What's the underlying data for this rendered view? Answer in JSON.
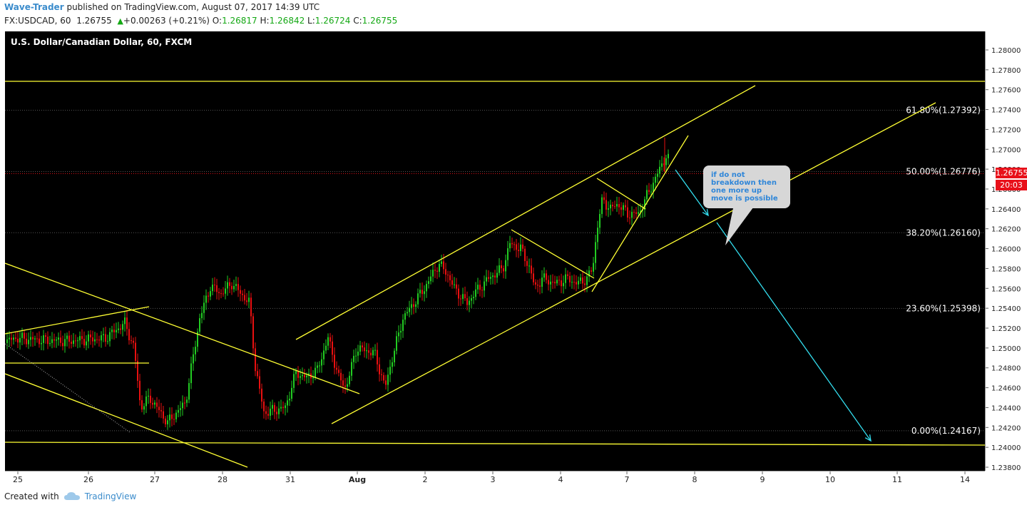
{
  "header": {
    "author": "Wave-Trader",
    "published": "published on TradingView.com, August 07, 2017 14:39 UTC",
    "symbol": "FX:USDCAD, 60",
    "price": "1.26755",
    "change": "+0.00263 (+0.21%)",
    "o_label": "O:",
    "o_value": "1.26817",
    "h_label": "H:",
    "h_value": "1.26842",
    "l_label": "L:",
    "l_value": "1.26724",
    "c_label": "C:",
    "c_value": "1.26755",
    "change_icon": "triangle-up-icon"
  },
  "footer": {
    "created_with": "Created with",
    "brand": "TradingView",
    "logo_icon": "tradingview-cloud-icon"
  },
  "chart_data": {
    "type": "candlestick",
    "title": "U.S. Dollar/Canadian Dollar, 60, FXCM",
    "ylim": [
      1.2375,
      1.2815
    ],
    "y_ticks": [
      "1.28000",
      "1.27800",
      "1.27600",
      "1.27400",
      "1.27200",
      "1.27000",
      "1.26800",
      "1.26600",
      "1.26400",
      "1.26200",
      "1.26000",
      "1.25800",
      "1.25600",
      "1.25400",
      "1.25200",
      "1.25000",
      "1.24800",
      "1.24600",
      "1.24400",
      "1.24200",
      "1.24000",
      "1.23800"
    ],
    "x_ticks": [
      "25",
      "26",
      "27",
      "28",
      "31",
      "Aug",
      "2",
      "3",
      "4",
      "7",
      "8",
      "9",
      "10",
      "11",
      "14"
    ],
    "last_price": "1.26755",
    "countdown": "20:03",
    "fibonacci": [
      {
        "label": "61.80%(1.27392)",
        "value": 1.27392
      },
      {
        "label": "50.00%(1.26776)",
        "value": 1.26776
      },
      {
        "label": "38.20%(1.26160)",
        "value": 1.2616
      },
      {
        "label": "23.60%(1.25398)",
        "value": 1.25398
      },
      {
        "label": "0.00%(1.24167)",
        "value": 1.24167
      }
    ],
    "annotation": "if do not breakdown then one more up move is possible",
    "colors": {
      "up": "#22cc22",
      "down": "#e81010",
      "trendline": "#ffff33",
      "arrow": "#33ddee",
      "grid": "#555555",
      "price": "#e8101a"
    }
  }
}
